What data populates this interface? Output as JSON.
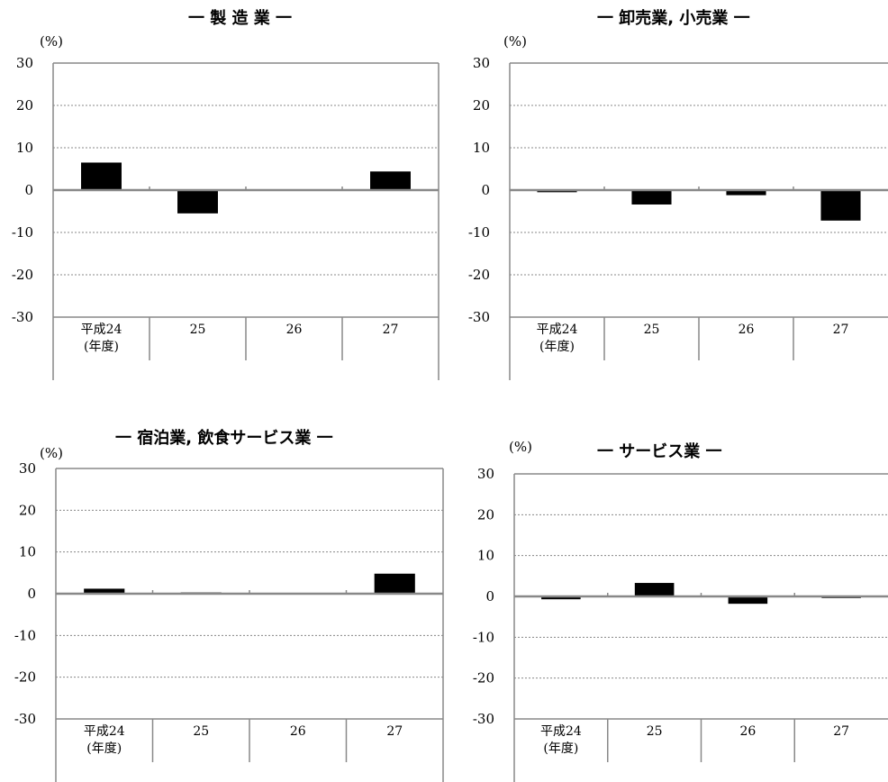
{
  "y_axis": {
    "unit": "(%)",
    "ticks": [
      "30",
      "20",
      "10",
      "0",
      "-10",
      "-20",
      "-30"
    ]
  },
  "x_axis": {
    "categories": [
      "平成24",
      "25",
      "26",
      "27"
    ],
    "first_sublabel": "(年度)"
  },
  "colors": {
    "bar": "#000000",
    "gridline": "#888888",
    "axis": "#888888"
  },
  "chart_data": [
    {
      "type": "bar",
      "title": "一 製 造 業 一",
      "ylabel": "(%)",
      "categories": [
        "平成24",
        "25",
        "26",
        "27"
      ],
      "values": [
        6.5,
        -5.5,
        0,
        4.4
      ],
      "ylim": [
        -30,
        30
      ],
      "grid": true
    },
    {
      "type": "bar",
      "title": "一 卸売業, 小売業 一",
      "ylabel": "(%)",
      "categories": [
        "平成24",
        "25",
        "26",
        "27"
      ],
      "values": [
        -0.5,
        -3.4,
        -1.2,
        -7.2
      ],
      "ylim": [
        -30,
        30
      ],
      "grid": true
    },
    {
      "type": "bar",
      "title": "一 宿泊業, 飲食サービス業 一",
      "ylabel": "(%)",
      "categories": [
        "平成24",
        "25",
        "26",
        "27"
      ],
      "values": [
        1.2,
        0.3,
        0,
        4.8
      ],
      "ylim": [
        -30,
        30
      ],
      "grid": true
    },
    {
      "type": "bar",
      "title": "一 サービス業 一",
      "ylabel": "(%)",
      "categories": [
        "平成24",
        "25",
        "26",
        "27"
      ],
      "values": [
        -0.7,
        3.3,
        -1.8,
        -0.4
      ],
      "ylim": [
        -30,
        30
      ],
      "grid": true
    }
  ]
}
